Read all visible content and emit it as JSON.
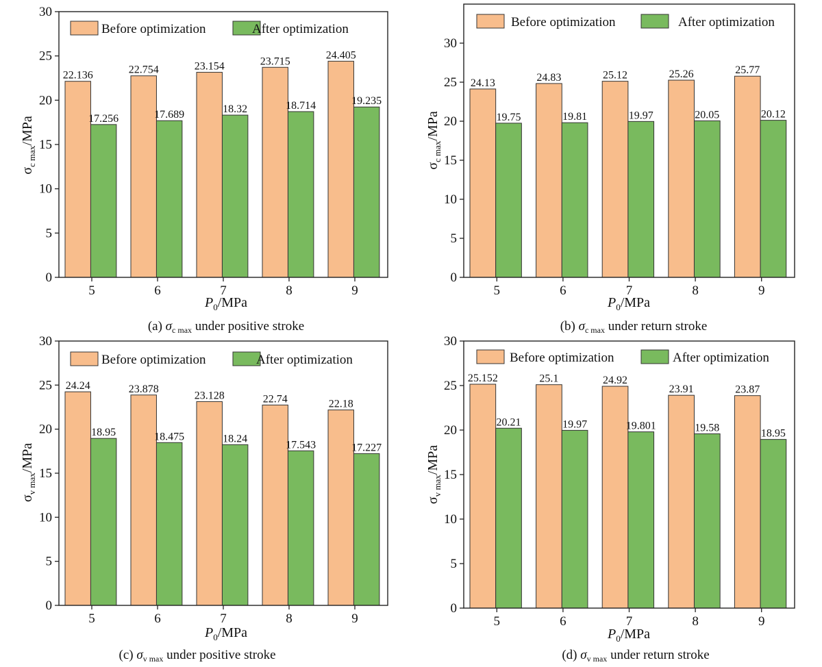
{
  "colors": {
    "before": "#F8BD8C",
    "after": "#79BA5E",
    "axis": "#222222",
    "stroke": "#333333"
  },
  "legend": {
    "before": "Before optimization",
    "after": "After optimization"
  },
  "chart_data": [
    {
      "type": "bar",
      "panel": "a",
      "categories": [
        "5",
        "6",
        "7",
        "8",
        "9"
      ],
      "series": [
        {
          "name": "Before optimization",
          "values": [
            22.136,
            22.754,
            23.154,
            23.715,
            24.405
          ]
        },
        {
          "name": "After optimization",
          "values": [
            17.256,
            17.689,
            18.32,
            18.714,
            19.235
          ]
        }
      ],
      "value_labels": {
        "before": [
          "22.136",
          "22.754",
          "23.154",
          "23.715",
          "24.405"
        ],
        "after": [
          "17.256",
          "17.689",
          "18.32",
          "18.714",
          "19.235"
        ]
      },
      "ylim": [
        0,
        30
      ],
      "yticks": [
        "0",
        "5",
        "10",
        "15",
        "20",
        "25",
        "30"
      ],
      "ylabel": {
        "sym": "σ",
        "sub": "c max",
        "unit": "/MPa"
      },
      "xlabel": {
        "sym": "P",
        "sub": "0",
        "unit": "/MPa"
      },
      "caption": {
        "prefix": "(a) ",
        "sym": "σ",
        "sub": "c max",
        "text": " under positive stroke"
      }
    },
    {
      "type": "bar",
      "panel": "b",
      "categories": [
        "5",
        "6",
        "7",
        "8",
        "9"
      ],
      "series": [
        {
          "name": "Before optimization",
          "values": [
            24.13,
            24.83,
            25.12,
            25.26,
            25.77
          ]
        },
        {
          "name": "After optimization",
          "values": [
            19.75,
            19.81,
            19.97,
            20.05,
            20.12
          ]
        }
      ],
      "value_labels": {
        "before": [
          "24.13",
          "24.83",
          "25.12",
          "25.26",
          "25.77"
        ],
        "after": [
          "19.75",
          "19.81",
          "19.97",
          "20.05",
          "20.12"
        ]
      },
      "ylim": [
        0,
        35
      ],
      "yticks": [
        "0",
        "5",
        "10",
        "15",
        "20",
        "25",
        "30"
      ],
      "ylabel": {
        "sym": "σ",
        "sub": "c max",
        "unit": "/MPa"
      },
      "xlabel": {
        "sym": "P",
        "sub": "0",
        "unit": "/MPa"
      },
      "caption": {
        "prefix": "(b)  ",
        "sym": "σ",
        "sub": "c max",
        "text": " under return stroke"
      }
    },
    {
      "type": "bar",
      "panel": "c",
      "categories": [
        "5",
        "6",
        "7",
        "8",
        "9"
      ],
      "series": [
        {
          "name": "Before optimization",
          "values": [
            24.24,
            23.878,
            23.128,
            22.74,
            22.18
          ]
        },
        {
          "name": "After optimization",
          "values": [
            18.95,
            18.475,
            18.24,
            17.543,
            17.227
          ]
        }
      ],
      "value_labels": {
        "before": [
          "24.24",
          "23.878",
          "23.128",
          "22.74",
          "22.18"
        ],
        "after": [
          "18.95",
          "18.475",
          "18.24",
          "17.543",
          "17.227"
        ]
      },
      "ylim": [
        0,
        30
      ],
      "yticks": [
        "0",
        "5",
        "10",
        "15",
        "20",
        "25",
        "30"
      ],
      "ylabel": {
        "sym": "σ",
        "sub": "v max",
        "unit": "/MPa"
      },
      "xlabel": {
        "sym": "P",
        "sub": "0",
        "unit": "/MPa"
      },
      "caption": {
        "prefix": "(c)  ",
        "sym": "σ",
        "sub": "v max",
        "text": " under positive stroke"
      }
    },
    {
      "type": "bar",
      "panel": "d",
      "categories": [
        "5",
        "6",
        "7",
        "8",
        "9"
      ],
      "series": [
        {
          "name": "Before optimization",
          "values": [
            25.152,
            25.1,
            24.92,
            23.91,
            23.87
          ]
        },
        {
          "name": "After optimization",
          "values": [
            20.21,
            19.97,
            19.801,
            19.58,
            18.95
          ]
        }
      ],
      "value_labels": {
        "before": [
          "25.152",
          "25.1",
          "24.92",
          "23.91",
          "23.87"
        ],
        "after": [
          "20.21",
          "19.97",
          "19.801",
          "19.58",
          "18.95"
        ]
      },
      "ylim": [
        0,
        30
      ],
      "yticks": [
        "0",
        "5",
        "10",
        "15",
        "20",
        "25",
        "30"
      ],
      "ylabel": {
        "sym": "σ",
        "sub": "v max",
        "unit": "/MPa"
      },
      "xlabel": {
        "sym": "P",
        "sub": "0",
        "unit": "/MPa"
      },
      "caption": {
        "prefix": "(d) ",
        "sym": "σ",
        "sub": "v max",
        "text": " under return stroke"
      }
    }
  ]
}
